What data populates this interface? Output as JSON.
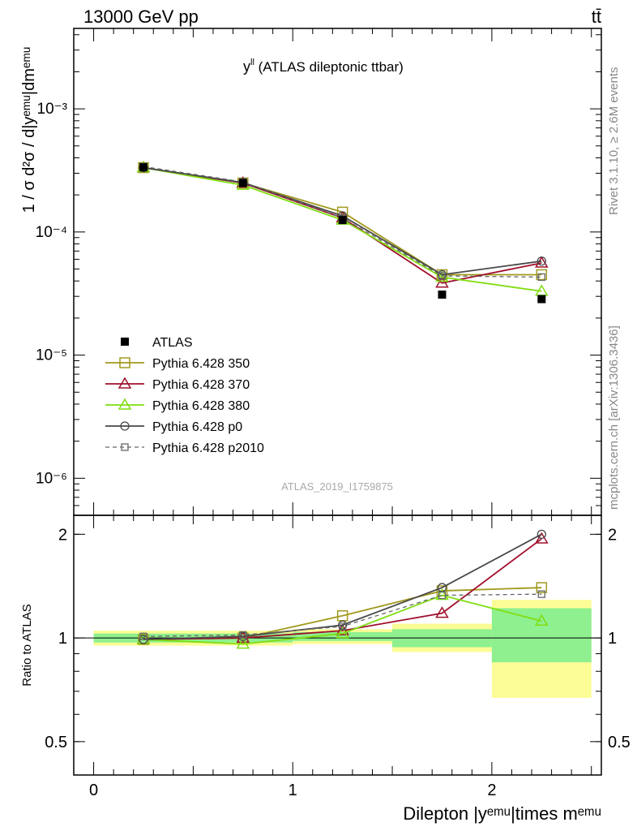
{
  "header": {
    "energy_label": "13000 GeV pp",
    "process_label": "tt̄"
  },
  "side_labels": {
    "rivet": "Rivet 3.1.10, ≥ 2.6M events",
    "mcplots": "mcplots.cern.ch [arXiv:1306.3436]"
  },
  "chart_data": [
    {
      "panel": "main",
      "type": "line",
      "title_main": "y",
      "title_sup": "ll",
      "title_rest": " (ATLAS dileptonic ttbar)",
      "ylabel": "1 / σ  d²σ / d|yᵉᵐᵘ|dmᵉᵐᵘ",
      "yscale": "log",
      "ylim": [
        5e-07,
        0.0045
      ],
      "ytick_labels": [
        "10⁻⁶",
        "10⁻⁵",
        "10⁻⁴",
        "10⁻³"
      ],
      "xlim": [
        -0.1,
        2.55
      ],
      "watermark": "ATLAS_2019_I1759875",
      "legend_position": "lower-left",
      "x": [
        0.25,
        0.75,
        1.25,
        1.75,
        2.25
      ],
      "data": {
        "name": "ATLAS",
        "values": [
          0.000335,
          0.00025,
          0.000125,
          3.1e-05,
          2.85e-05
        ],
        "color": "#000000"
      },
      "series": [
        {
          "name": "Pythia 6.428 350",
          "color": "#a09a1e",
          "marker": "square",
          "dashed": false,
          "values": [
            0.000333,
            0.00025,
            0.000145,
            4.5e-05,
            4.5e-05
          ]
        },
        {
          "name": "Pythia 6.428 370",
          "color": "#a0102c",
          "marker": "triangle",
          "dashed": false,
          "values": [
            0.000333,
            0.00025,
            0.00013,
            3.85e-05,
            5.6e-05
          ]
        },
        {
          "name": "Pythia 6.428 380",
          "color": "#80dd10",
          "marker": "triangle",
          "dashed": false,
          "values": [
            0.000333,
            0.00024,
            0.000125,
            4.3e-05,
            3.3e-05
          ]
        },
        {
          "name": "Pythia 6.428 p0",
          "color": "#484848",
          "marker": "circle",
          "dashed": false,
          "values": [
            0.000333,
            0.000252,
            0.000135,
            4.5e-05,
            5.8e-05
          ]
        },
        {
          "name": "Pythia 6.428 p2010",
          "color": "#666666",
          "marker": "square-small",
          "dashed": true,
          "values": [
            0.00034,
            0.000255,
            0.00013,
            4.4e-05,
            4.3e-05
          ]
        }
      ]
    },
    {
      "panel": "ratio",
      "type": "line",
      "ylabel": "Ratio to ATLAS",
      "xlabel": "Dilepton |yᵉᵐᵘ|times mᵉᵐᵘ",
      "xlim": [
        -0.1,
        2.55
      ],
      "ylim": [
        0.4,
        2.27
      ],
      "xtick_labels": [
        "0",
        "1",
        "2"
      ],
      "ytick_labels": [
        "0.5",
        "1",
        "2"
      ],
      "bands": [
        {
          "x": [
            0,
            1
          ],
          "inner": [
            0.97,
            1.03
          ],
          "outer": [
            0.95,
            1.05
          ]
        },
        {
          "x": [
            1,
            1.5
          ],
          "inner": [
            0.98,
            1.04
          ],
          "outer": [
            0.96,
            1.06
          ]
        },
        {
          "x": [
            1.5,
            2
          ],
          "inner": [
            0.94,
            1.06
          ],
          "outer": [
            0.91,
            1.1
          ]
        },
        {
          "x": [
            2,
            2.5
          ],
          "inner": [
            0.85,
            1.22
          ],
          "outer": [
            0.67,
            1.29
          ]
        }
      ],
      "x": [
        0.25,
        0.75,
        1.25,
        1.75,
        2.25
      ],
      "series": [
        {
          "name": "Pythia 6.428 350",
          "values": [
            0.99,
            1.0,
            1.16,
            1.37,
            1.4
          ]
        },
        {
          "name": "Pythia 6.428 370",
          "values": [
            0.99,
            1.0,
            1.05,
            1.18,
            1.94
          ]
        },
        {
          "name": "Pythia 6.428 380",
          "values": [
            0.99,
            0.96,
            1.03,
            1.33,
            1.12
          ]
        },
        {
          "name": "Pythia 6.428 p0",
          "values": [
            0.99,
            1.01,
            1.09,
            1.4,
            2.0
          ]
        },
        {
          "name": "Pythia 6.428 p2010",
          "values": [
            1.01,
            1.02,
            1.08,
            1.33,
            1.34
          ]
        }
      ]
    }
  ]
}
